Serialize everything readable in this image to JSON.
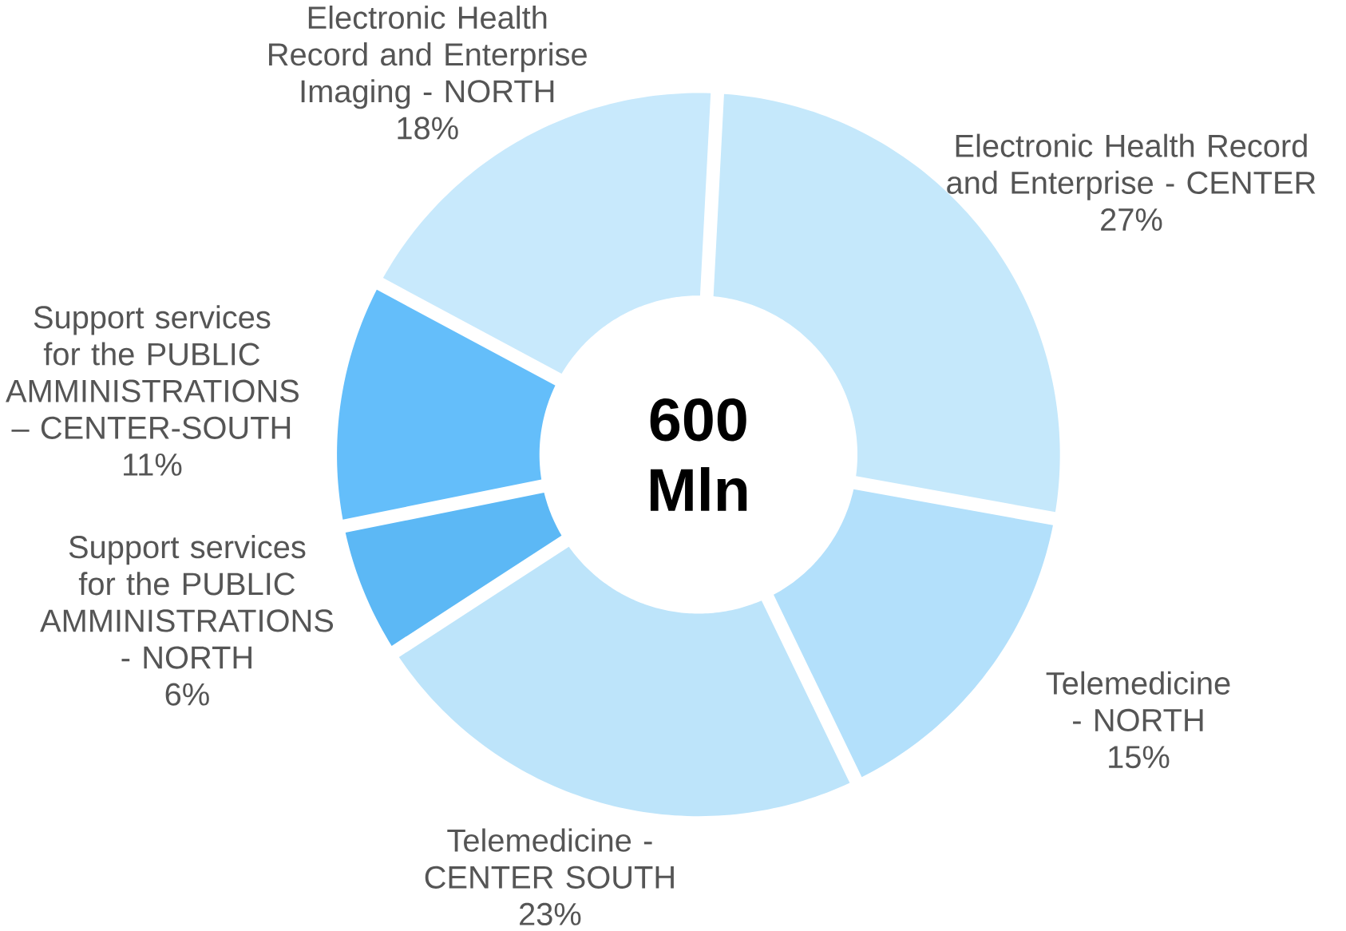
{
  "chart_data": {
    "type": "donut",
    "title": "600 Mln",
    "categories": [
      "Electronic Health Record and Enterprise - CENTER",
      "Telemedicine - NORTH",
      "Telemedicine - CENTER SOUTH",
      "Support services for the PUBLIC AMMINISTRATIONS - NORTH",
      "Support services for the PUBLIC AMMINISTRATIONS – CENTER-SOUTH",
      "Electronic Health Record and Enterprise Imaging - NORTH"
    ],
    "values": [
      27,
      15,
      23,
      6,
      11,
      18
    ],
    "value_labels": [
      "27%",
      "15%",
      "23%",
      "6%",
      "11%",
      "18%"
    ],
    "colors": [
      "#c5e8fb",
      "#b3e0fb",
      "#bde4fa",
      "#5cb8f5",
      "#64befa",
      "#c8e9fc"
    ]
  }
}
